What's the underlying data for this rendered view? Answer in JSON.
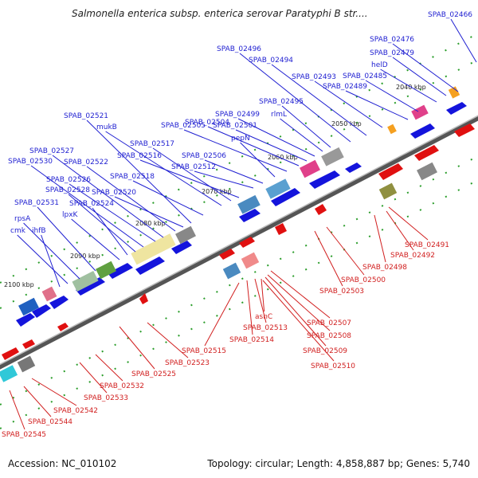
{
  "title": "Salmonella enterica subsp. enterica serovar Paratyphi B str....",
  "footer": {
    "accession": "Accession: NC_010102",
    "meta": "Topology: circular; Length: 4,858,887 bp; Genes: 5,740"
  },
  "colors": {
    "label_top": "#1f1fd1",
    "label_bottom": "#d11f1f",
    "gene_forward": "#1414dc",
    "gene_reverse": "#e01010",
    "backbone": "#8a8a8a",
    "tick": "#2a9d2a"
  },
  "ticks": [
    {
      "label": "2040 kbp"
    },
    {
      "label": "2050 kbp"
    },
    {
      "label": "2060 kbp"
    },
    {
      "label": "2070 kbp"
    },
    {
      "label": "2080 kbp"
    },
    {
      "label": "2090 kbp"
    },
    {
      "label": "2100 kbp"
    }
  ],
  "labels_top": [
    "SPAB_02466",
    "SPAB_02476",
    "SPAB_02479",
    "helD",
    "SPAB_02485",
    "SPAB_02489",
    "SPAB_02493",
    "SPAB_02494",
    "SPAB_02496",
    "SPAB_02495",
    "rlmL",
    "SPAB_02499",
    "SPAB_02501",
    "SPAB_02504",
    "SPAB_02505",
    "pepN",
    "SPAB_02506",
    "SPAB_02512",
    "SPAB_02516",
    "SPAB_02517",
    "mukB",
    "SPAB_02518",
    "SPAB_02521",
    "SPAB_02520",
    "SPAB_02522",
    "SPAB_02527",
    "SPAB_02526",
    "SPAB_02530",
    "SPAB_02528",
    "SPAB_02524",
    "lpxK",
    "SPAB_02531",
    "rpsA",
    "cmk",
    "ihfB"
  ],
  "labels_bottom": [
    "SPAB_02491",
    "SPAB_02492",
    "SPAB_02498",
    "SPAB_02500",
    "SPAB_02503",
    "SPAB_02507",
    "SPAB_02508",
    "SPAB_02509",
    "SPAB_02510",
    "asnC",
    "SPAB_02513",
    "SPAB_02514",
    "SPAB_02515",
    "SPAB_02523",
    "SPAB_02525",
    "SPAB_02532",
    "SPAB_02533",
    "SPAB_02542",
    "SPAB_02544",
    "SPAB_02545"
  ]
}
